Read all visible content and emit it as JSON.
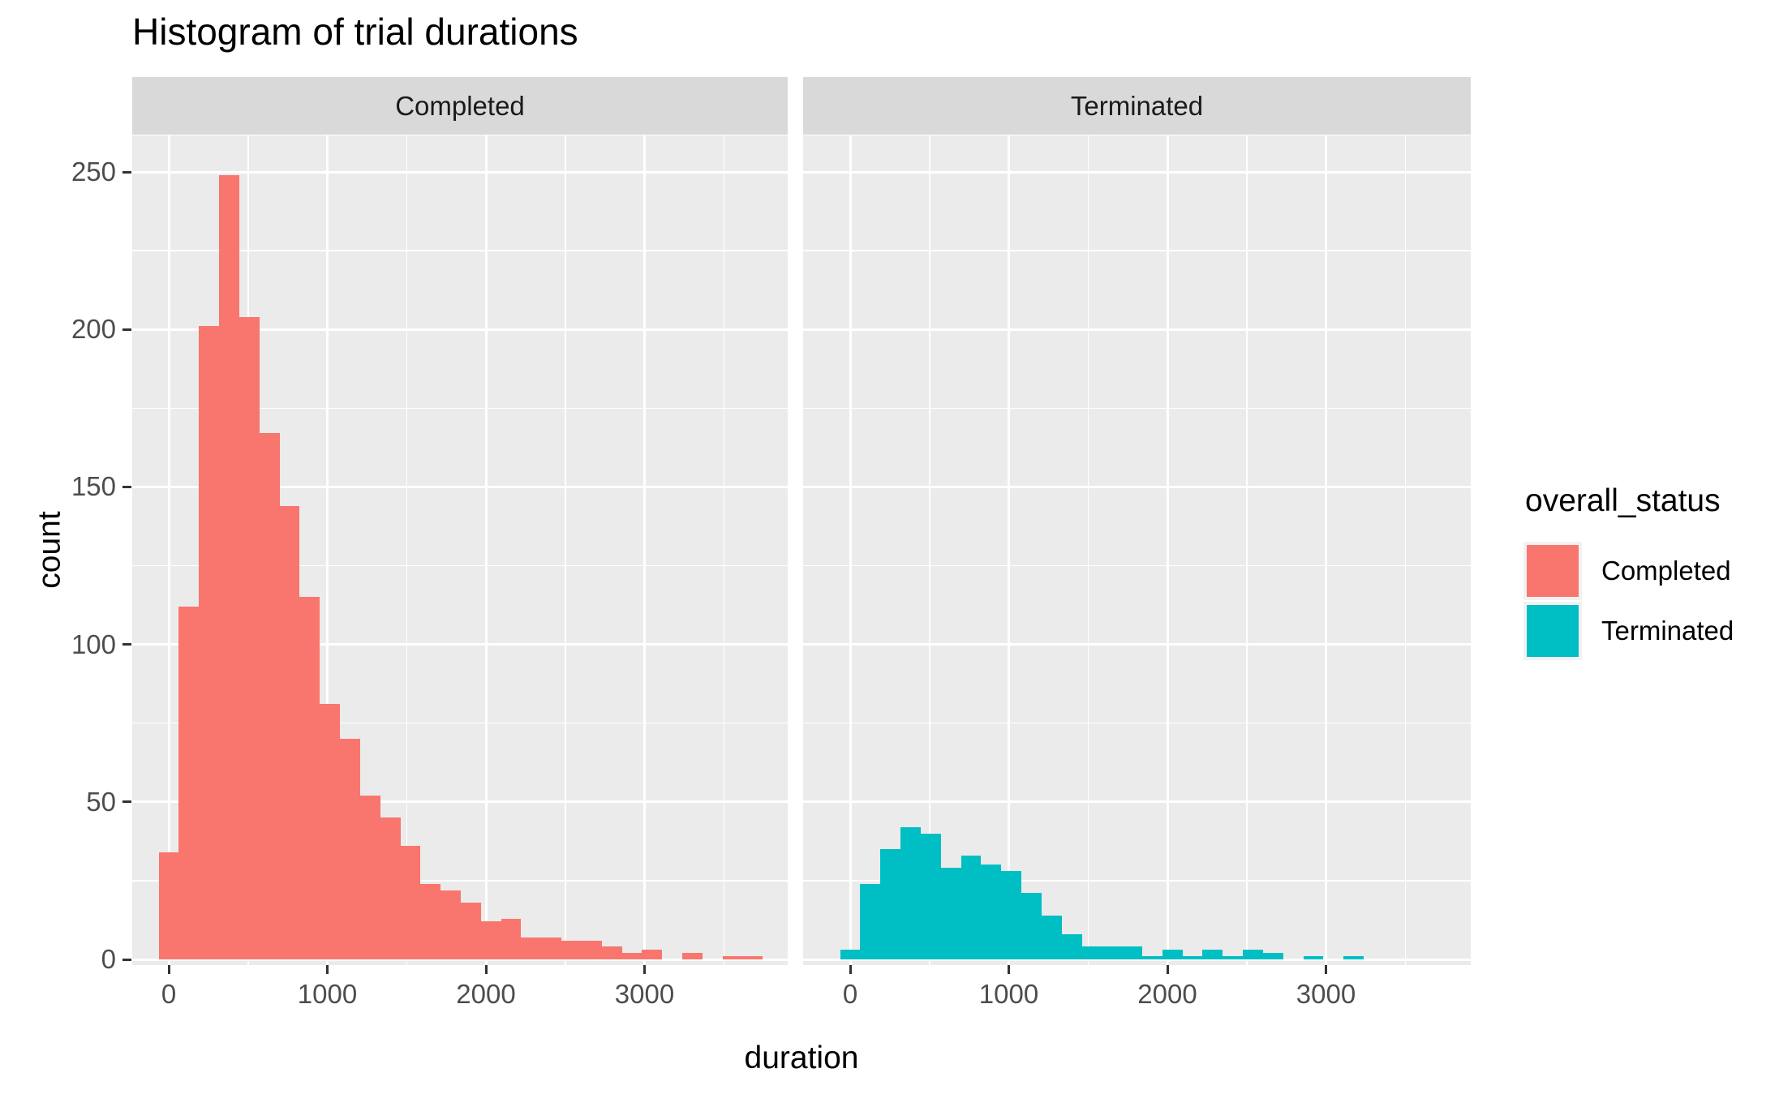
{
  "title": "Histogram of trial durations",
  "facets": [
    "Completed",
    "Terminated"
  ],
  "x_axis": {
    "label": "duration",
    "tick_labels": [
      "0",
      "1000",
      "2000",
      "3000"
    ]
  },
  "y_axis": {
    "label": "count",
    "tick_labels": [
      "0",
      "50",
      "100",
      "150",
      "200",
      "250"
    ]
  },
  "legend": {
    "title": "overall_status",
    "items": [
      {
        "label": "Completed",
        "color": "#F8766D"
      },
      {
        "label": "Terminated",
        "color": "#00BFC4"
      }
    ]
  },
  "colors": {
    "completed": "#F8766D",
    "terminated": "#00BFC4",
    "panel_background": "#EBEBEB",
    "strip_background": "#D9D9D9",
    "gridline": "#FFFFFF",
    "tick_text": "#4D4D4D",
    "text": "#000000"
  },
  "chart_data": {
    "type": "bar",
    "subtype": "faceted-histogram",
    "title": "Histogram of trial durations",
    "xlabel": "duration",
    "ylabel": "count",
    "facet_variable": "overall_status",
    "legend_position": "right",
    "grid": true,
    "x_ticks": [
      0,
      1000,
      2000,
      3000
    ],
    "x_minor_ticks": [
      500,
      1500,
      2500,
      3500
    ],
    "y_ticks": [
      0,
      50,
      100,
      150,
      200,
      250
    ],
    "y_minor_ticks": [
      25,
      75,
      125,
      175,
      225
    ],
    "ylim": [
      0,
      263
    ],
    "bin_width": 127,
    "series": [
      {
        "name": "Completed",
        "color": "#F8766D",
        "bin_centers": [
          0,
          127,
          254,
          381,
          508,
          635,
          762,
          889,
          1016,
          1143,
          1270,
          1397,
          1524,
          1651,
          1778,
          1905,
          2032,
          2159,
          2286,
          2413,
          2540,
          2667,
          2794,
          2921,
          3048,
          3175,
          3302,
          3429,
          3556,
          3683
        ],
        "counts": [
          34,
          112,
          201,
          249,
          204,
          167,
          144,
          115,
          81,
          70,
          52,
          45,
          36,
          24,
          22,
          18,
          12,
          13,
          7,
          7,
          6,
          6,
          4,
          2,
          3,
          0,
          2,
          0,
          1,
          1
        ]
      },
      {
        "name": "Terminated",
        "color": "#00BFC4",
        "bin_centers": [
          0,
          127,
          254,
          381,
          508,
          635,
          762,
          889,
          1016,
          1143,
          1270,
          1397,
          1524,
          1651,
          1778,
          1905,
          2032,
          2159,
          2286,
          2413,
          2540,
          2667,
          2794,
          2921,
          3048,
          3175
        ],
        "counts": [
          3,
          24,
          35,
          42,
          40,
          29,
          33,
          30,
          28,
          21,
          14,
          8,
          4,
          4,
          4,
          1,
          3,
          1,
          3,
          1,
          3,
          2,
          0,
          1,
          0,
          1
        ]
      }
    ]
  }
}
